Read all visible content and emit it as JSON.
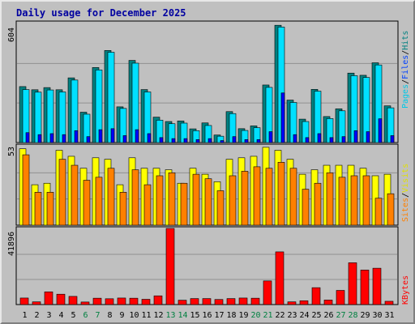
{
  "chart_data": {
    "type": "bar",
    "title": "Daily usage for December 2025",
    "categories": [
      "1",
      "2",
      "3",
      "4",
      "5",
      "6",
      "7",
      "8",
      "9",
      "10",
      "11",
      "12",
      "13",
      "14",
      "15",
      "16",
      "17",
      "18",
      "19",
      "20",
      "21",
      "22",
      "23",
      "24",
      "25",
      "26",
      "27",
      "28",
      "29",
      "30",
      "31"
    ],
    "weekend_days": [
      "6",
      "7",
      "13",
      "14",
      "20",
      "21",
      "27",
      "28"
    ],
    "panels": [
      {
        "id": "top",
        "max_label": "604",
        "ylim": [
          0,
          604
        ],
        "legend": [
          "Pages",
          "Files",
          "Hits"
        ],
        "series": [
          {
            "name": "Hits",
            "color": "#008080",
            "values": [
              282,
              266,
              277,
              266,
              326,
              153,
              378,
              464,
              180,
              414,
              267,
              128,
              106,
              109,
              69,
              99,
              38,
              156,
              70,
              84,
              290,
              591,
              214,
              118,
              268,
              131,
              170,
              350,
              339,
              402,
              185
            ]
          },
          {
            "name": "Files",
            "color": "#00e0ff",
            "values": [
              267,
              254,
              265,
              255,
              315,
              143,
              366,
              455,
              172,
              400,
              255,
              113,
              95,
              98,
              60,
              86,
              32,
              146,
              61,
              75,
              278,
              582,
              202,
              106,
              259,
              121,
              160,
              337,
              328,
              391,
              175
            ]
          },
          {
            "name": "Pages",
            "color": "#0000ff",
            "values": [
              50,
              40,
              45,
              40,
              60,
              30,
              65,
              70,
              35,
              65,
              45,
              25,
              20,
              20,
              15,
              20,
              10,
              30,
              15,
              15,
              55,
              250,
              40,
              25,
              45,
              25,
              30,
              60,
              55,
              120,
              35
            ]
          }
        ]
      },
      {
        "id": "mid",
        "max_label": "53",
        "ylim": [
          0,
          53
        ],
        "legend": [
          "Sites",
          "Visits"
        ],
        "series": [
          {
            "name": "Visits",
            "color": "#ffff00",
            "values": [
              51,
              27,
              28,
              50,
              46,
              38,
              45,
              44,
              27,
              45,
              38,
              38,
              37,
              28,
              38,
              34,
              29,
              44,
              45,
              46,
              52,
              50,
              44,
              34,
              37,
              40,
              40,
              40,
              38,
              33,
              34
            ]
          },
          {
            "name": "Sites",
            "color": "#ff8000",
            "values": [
              47,
              22,
              22,
              44,
              40,
              30,
              32,
              38,
              22,
              37,
              27,
              33,
              35,
              28,
              34,
              31,
              23,
              33,
              36,
              39,
              38,
              42,
              38,
              24,
              28,
              35,
              32,
              33,
              33,
              18,
              21
            ]
          }
        ]
      },
      {
        "id": "bot",
        "max_label": "41896",
        "ylim": [
          0,
          41896
        ],
        "legend": [
          "KBytes"
        ],
        "series": [
          {
            "name": "KBytes",
            "color": "#ff0000",
            "values": [
              3600,
              1500,
              7000,
              5700,
              4500,
              1400,
              3500,
              3200,
              3600,
              3500,
              2900,
              4800,
              41896,
              2400,
              3300,
              3300,
              2800,
              3300,
              3600,
              3500,
              13000,
              29000,
              1500,
              2100,
              9300,
              2500,
              7800,
              23000,
              19000,
              20000,
              1800
            ]
          }
        ]
      }
    ]
  }
}
